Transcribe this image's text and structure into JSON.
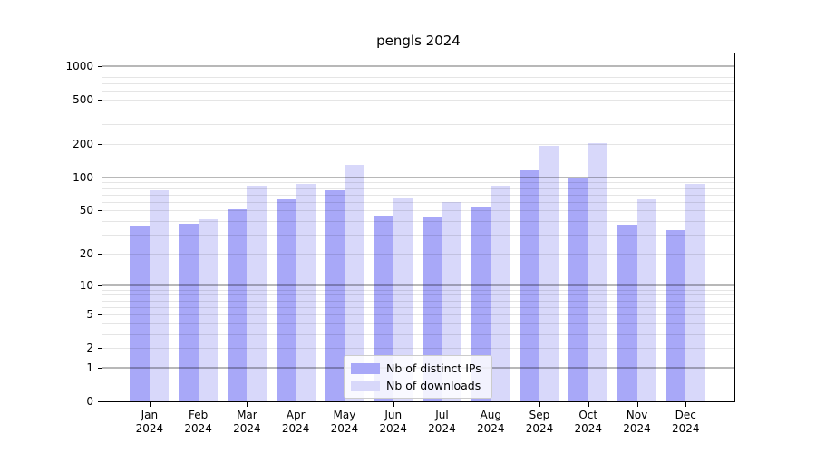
{
  "chart_data": {
    "type": "bar",
    "title": "pengls 2024",
    "year": "2024",
    "categories": [
      "Jan",
      "Feb",
      "Mar",
      "Apr",
      "May",
      "Jun",
      "Jul",
      "Aug",
      "Sep",
      "Oct",
      "Nov",
      "Dec"
    ],
    "series": [
      {
        "name": "Nb of distinct IPs",
        "color": "#a8a8f8",
        "values": [
          36,
          38,
          51,
          63,
          77,
          45,
          43,
          54,
          115,
          100,
          37,
          33
        ]
      },
      {
        "name": "Nb of downloads",
        "color": "#d8d8fa",
        "values": [
          77,
          42,
          84,
          88,
          131,
          65,
          60,
          84,
          193,
          205,
          63,
          87
        ]
      }
    ],
    "yscale": "log1p",
    "ylim": [
      0,
      1325
    ],
    "yticks": [
      0,
      1,
      2,
      5,
      10,
      20,
      50,
      100,
      200,
      500,
      1000
    ],
    "major_gridlines": [
      1,
      10,
      100,
      1000
    ],
    "minor_gridlines": [
      2,
      3,
      4,
      5,
      6,
      7,
      8,
      9,
      20,
      30,
      40,
      50,
      60,
      70,
      80,
      90,
      200,
      300,
      400,
      500,
      600,
      700,
      800,
      900
    ],
    "grid": true,
    "legend_position": "lower center"
  }
}
